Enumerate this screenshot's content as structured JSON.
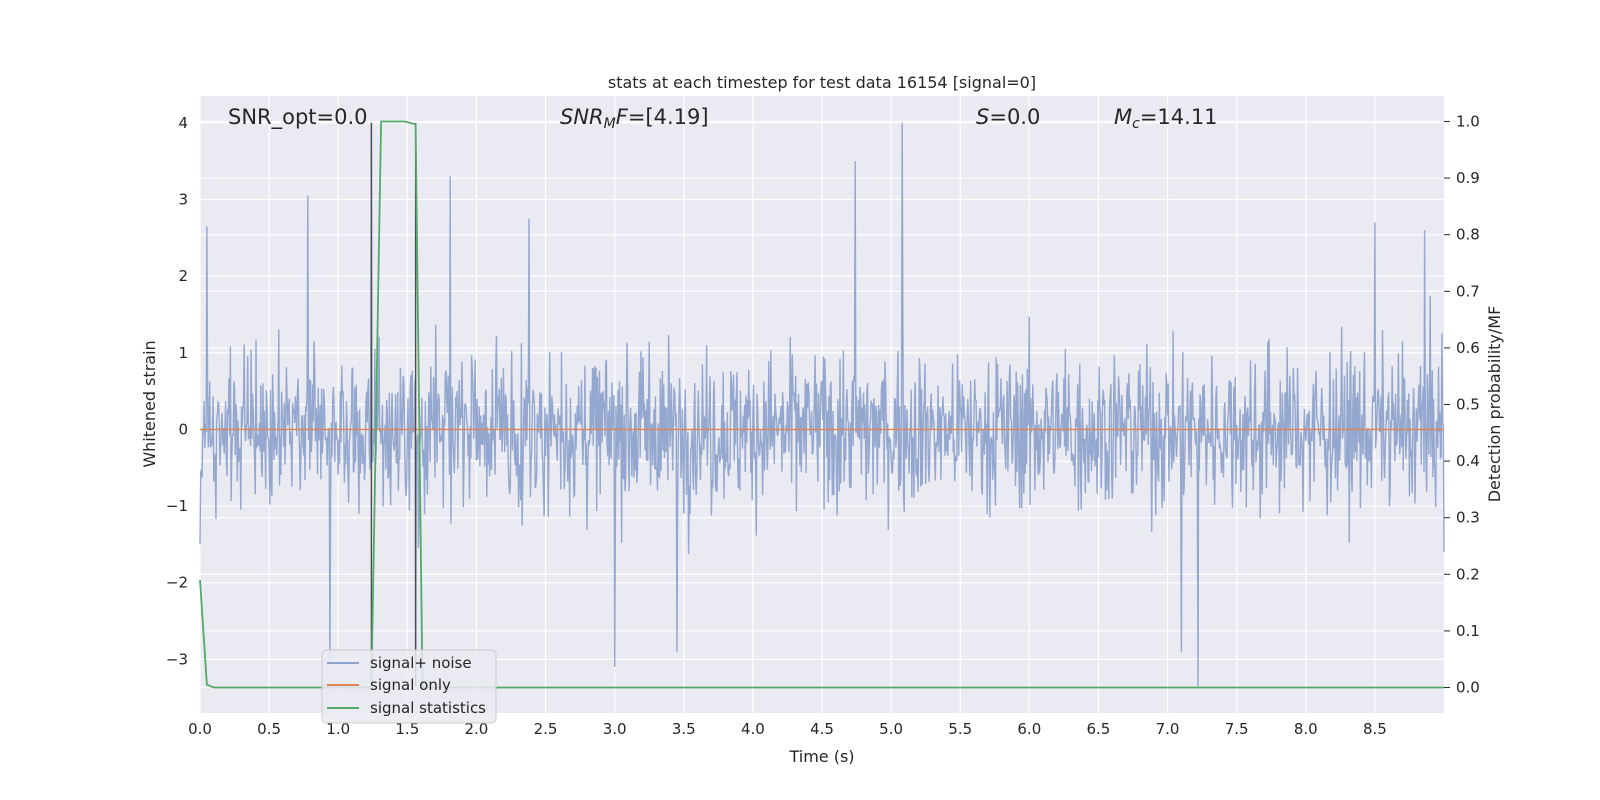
{
  "chart_data": {
    "type": "line",
    "title": "stats at each timestep for test data 16154 [signal=0]",
    "xlabel": "Time (s)",
    "ylabel": "Whitened strain",
    "y2label": "Detection probability/MF",
    "xlim": [
      0.0,
      9.0
    ],
    "ylim": [
      -3.7,
      4.35
    ],
    "y2lim": [
      -0.045,
      1.045
    ],
    "xticks": [
      "0.0",
      "0.5",
      "1.0",
      "1.5",
      "2.0",
      "2.5",
      "3.0",
      "3.5",
      "4.0",
      "4.5",
      "5.0",
      "5.5",
      "6.0",
      "6.5",
      "7.0",
      "7.5",
      "8.0",
      "8.5"
    ],
    "yticks": [
      "−3",
      "−2",
      "−1",
      "0",
      "1",
      "2",
      "3",
      "4"
    ],
    "y2ticks": [
      "0.0",
      "0.1",
      "0.2",
      "0.3",
      "0.4",
      "0.5",
      "0.6",
      "0.7",
      "0.8",
      "0.9",
      "1.0"
    ],
    "grid": true,
    "legend_position": "lower-left",
    "annotations": {
      "snr_opt": "SNR_opt=0.0",
      "snr_mf_main": "SNR",
      "snr_mf_sub": "M",
      "snr_mf_mid": "F",
      "snr_mf_value": "=[4.19]",
      "s_letter": "S",
      "s_value": "=0.0",
      "mc_main": "M",
      "mc_sub": "c",
      "mc_value": "=14.11"
    },
    "marker_lines_x": [
      1.24,
      1.56
    ],
    "series": [
      {
        "name": "signal+ noise",
        "color": "#8fa3cc",
        "axis": "left",
        "description_points": {
          "x": [
            0.0,
            0.05,
            0.78,
            0.94,
            1.24,
            1.56,
            1.81,
            2.38,
            3.0,
            3.45,
            4.74,
            5.08,
            7.1,
            7.22,
            8.5,
            8.86,
            9.0
          ],
          "y": [
            -1.5,
            2.65,
            3.05,
            -3.1,
            4.0,
            -3.2,
            3.3,
            2.75,
            -3.1,
            -2.9,
            3.5,
            4.0,
            -2.9,
            -3.35,
            2.7,
            2.6,
            -1.6
          ]
        }
      },
      {
        "name": "signal only",
        "color": "#dd8452",
        "axis": "left",
        "x": [
          0.0,
          9.0
        ],
        "y": [
          0.0,
          0.0
        ]
      },
      {
        "name": "signal statistics",
        "color": "#55a868",
        "axis": "right",
        "x": [
          0.0,
          0.05,
          0.1,
          1.24,
          1.31,
          1.48,
          1.56,
          1.61,
          9.0
        ],
        "y": [
          0.19,
          0.005,
          0.0,
          0.0,
          1.0,
          1.0,
          0.995,
          0.0,
          0.0
        ]
      }
    ]
  }
}
